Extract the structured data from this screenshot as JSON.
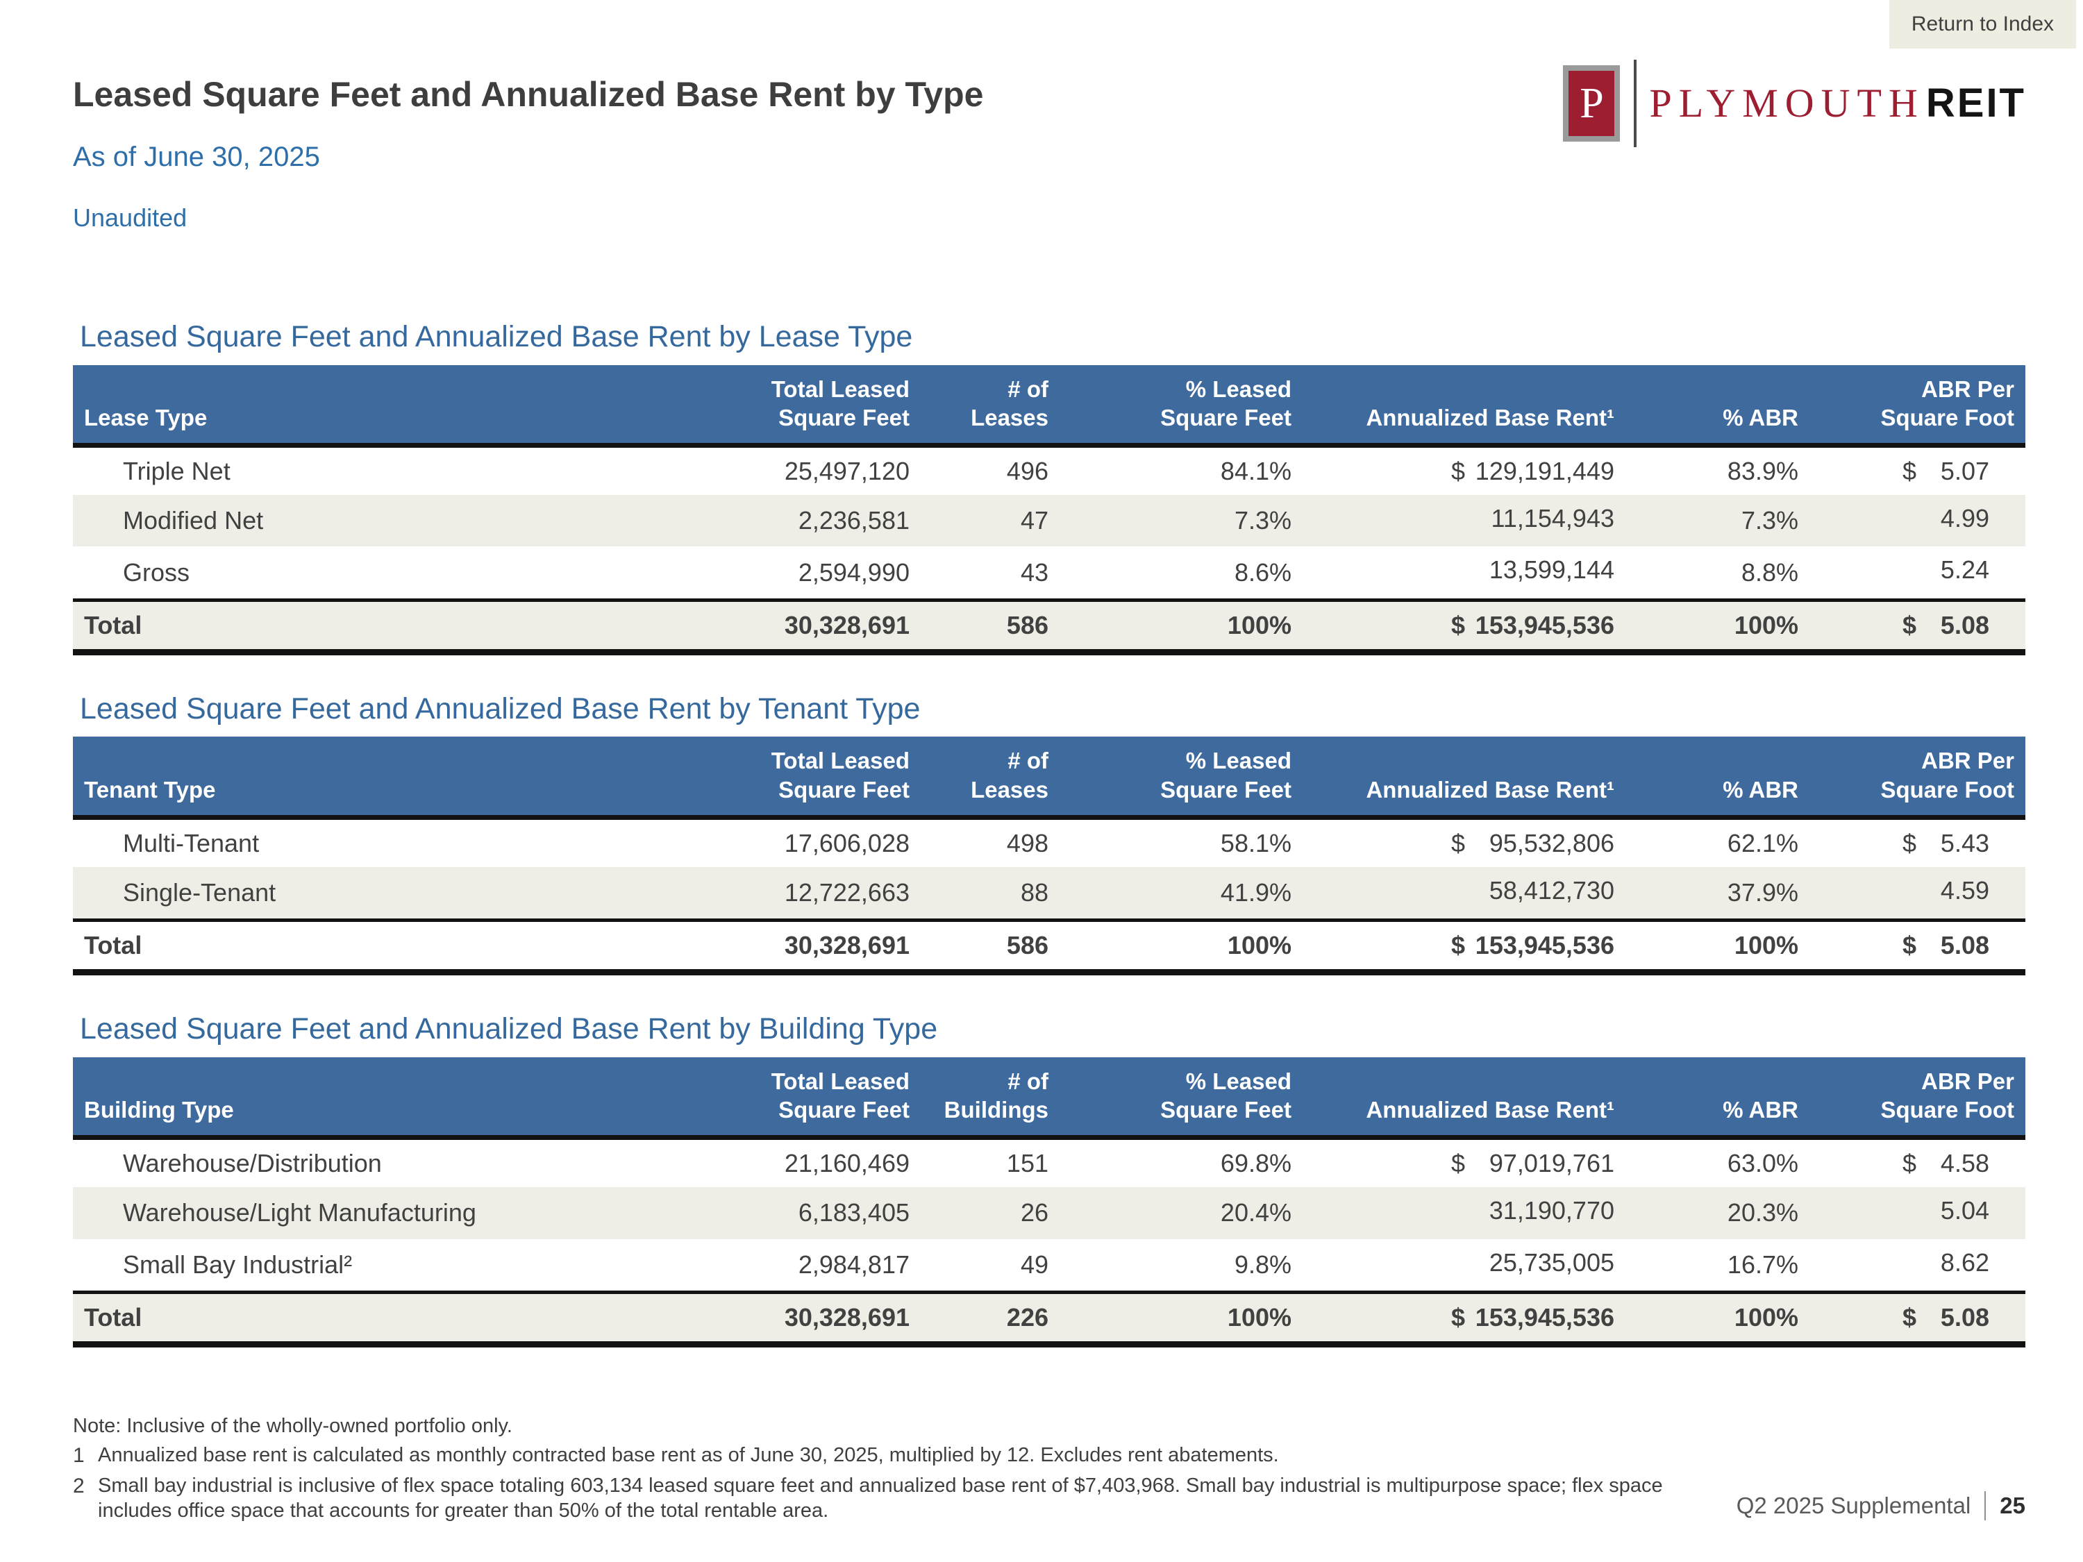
{
  "page": {
    "return_to_index": "Return to Index",
    "title": "Leased Square Feet and Annualized Base Rent by Type",
    "subtitle": "As of June 30, 2025",
    "status": "Unaudited",
    "footer_label": "Q2 2025 Supplemental",
    "footer_page": "25"
  },
  "logo": {
    "monogram": "P",
    "wordmark": "PLYMOUTH",
    "wordmark_suffix": "REIT"
  },
  "colors": {
    "header_blue": "#3f6a9d",
    "section_title_blue": "#35699e",
    "subtitle_blue": "#2f6fa9",
    "row_shade_beige": "#efeee6",
    "brand_maroon": "#9d1d31",
    "button_beige": "#efece1"
  },
  "tables": [
    {
      "title": "Leased Square Feet and Annualized Base Rent by Lease Type",
      "headers": [
        "Lease Type",
        "Total Leased\nSquare Feet",
        "# of\nLeases",
        "% Leased\nSquare Feet",
        "Annualized Base Rent¹",
        "% ABR",
        "ABR Per\nSquare Foot"
      ],
      "rows": [
        {
          "label": "Triple Net",
          "total_sqft": "25,497,120",
          "count": "496",
          "pct_leased": "84.1%",
          "abr_currency": "$",
          "abr": "129,191,449",
          "pct_abr": "83.9%",
          "psf_currency": "$",
          "abr_psf": "5.07"
        },
        {
          "label": "Modified Net",
          "total_sqft": "2,236,581",
          "count": "47",
          "pct_leased": "7.3%",
          "abr_currency": "",
          "abr": "11,154,943",
          "pct_abr": "7.3%",
          "psf_currency": "",
          "abr_psf": "4.99"
        },
        {
          "label": "Gross",
          "total_sqft": "2,594,990",
          "count": "43",
          "pct_leased": "8.6%",
          "abr_currency": "",
          "abr": "13,599,144",
          "pct_abr": "8.8%",
          "psf_currency": "",
          "abr_psf": "5.24"
        }
      ],
      "total": {
        "label": "Total",
        "total_sqft": "30,328,691",
        "count": "586",
        "pct_leased": "100%",
        "abr_currency": "$",
        "abr": "153,945,536",
        "pct_abr": "100%",
        "psf_currency": "$",
        "abr_psf": "5.08"
      }
    },
    {
      "title": "Leased Square Feet and Annualized Base Rent by Tenant Type",
      "headers": [
        "Tenant Type",
        "Total Leased\nSquare Feet",
        "# of\nLeases",
        "% Leased\nSquare Feet",
        "Annualized Base Rent¹",
        "% ABR",
        "ABR Per\nSquare Foot"
      ],
      "rows": [
        {
          "label": "Multi-Tenant",
          "total_sqft": "17,606,028",
          "count": "498",
          "pct_leased": "58.1%",
          "abr_currency": "$",
          "abr": "95,532,806",
          "pct_abr": "62.1%",
          "psf_currency": "$",
          "abr_psf": "5.43"
        },
        {
          "label": "Single-Tenant",
          "total_sqft": "12,722,663",
          "count": "88",
          "pct_leased": "41.9%",
          "abr_currency": "",
          "abr": "58,412,730",
          "pct_abr": "37.9%",
          "psf_currency": "",
          "abr_psf": "4.59"
        }
      ],
      "total": {
        "label": "Total",
        "total_sqft": "30,328,691",
        "count": "586",
        "pct_leased": "100%",
        "abr_currency": "$",
        "abr": "153,945,536",
        "pct_abr": "100%",
        "psf_currency": "$",
        "abr_psf": "5.08"
      }
    },
    {
      "title": "Leased Square Feet and Annualized Base Rent by Building Type",
      "headers": [
        "Building Type",
        "Total Leased\nSquare Feet",
        "# of\nBuildings",
        "% Leased\nSquare Feet",
        "Annualized Base Rent¹",
        "% ABR",
        "ABR Per\nSquare Foot"
      ],
      "rows": [
        {
          "label": "Warehouse/Distribution",
          "total_sqft": "21,160,469",
          "count": "151",
          "pct_leased": "69.8%",
          "abr_currency": "$",
          "abr": "97,019,761",
          "pct_abr": "63.0%",
          "psf_currency": "$",
          "abr_psf": "4.58"
        },
        {
          "label": "Warehouse/Light Manufacturing",
          "total_sqft": "6,183,405",
          "count": "26",
          "pct_leased": "20.4%",
          "abr_currency": "",
          "abr": "31,190,770",
          "pct_abr": "20.3%",
          "psf_currency": "",
          "abr_psf": "5.04"
        },
        {
          "label": "Small Bay Industrial²",
          "total_sqft": "2,984,817",
          "count": "49",
          "pct_leased": "9.8%",
          "abr_currency": "",
          "abr": "25,735,005",
          "pct_abr": "16.7%",
          "psf_currency": "",
          "abr_psf": "8.62"
        }
      ],
      "total": {
        "label": "Total",
        "total_sqft": "30,328,691",
        "count": "226",
        "pct_leased": "100%",
        "abr_currency": "$",
        "abr": "153,945,536",
        "pct_abr": "100%",
        "psf_currency": "$",
        "abr_psf": "5.08"
      }
    }
  ],
  "footnotes": [
    {
      "marker": "",
      "text": "Note: Inclusive of the wholly-owned portfolio only."
    },
    {
      "marker": "1",
      "text": "Annualized base rent is calculated as monthly contracted base rent as of June 30, 2025, multiplied by 12. Excludes rent abatements."
    },
    {
      "marker": "2",
      "text": "Small bay industrial is inclusive of flex space totaling 603,134 leased square feet and annualized base rent of $7,403,968. Small bay industrial is multipurpose space; flex space includes office space that accounts for greater than 50% of the total rentable area."
    }
  ]
}
